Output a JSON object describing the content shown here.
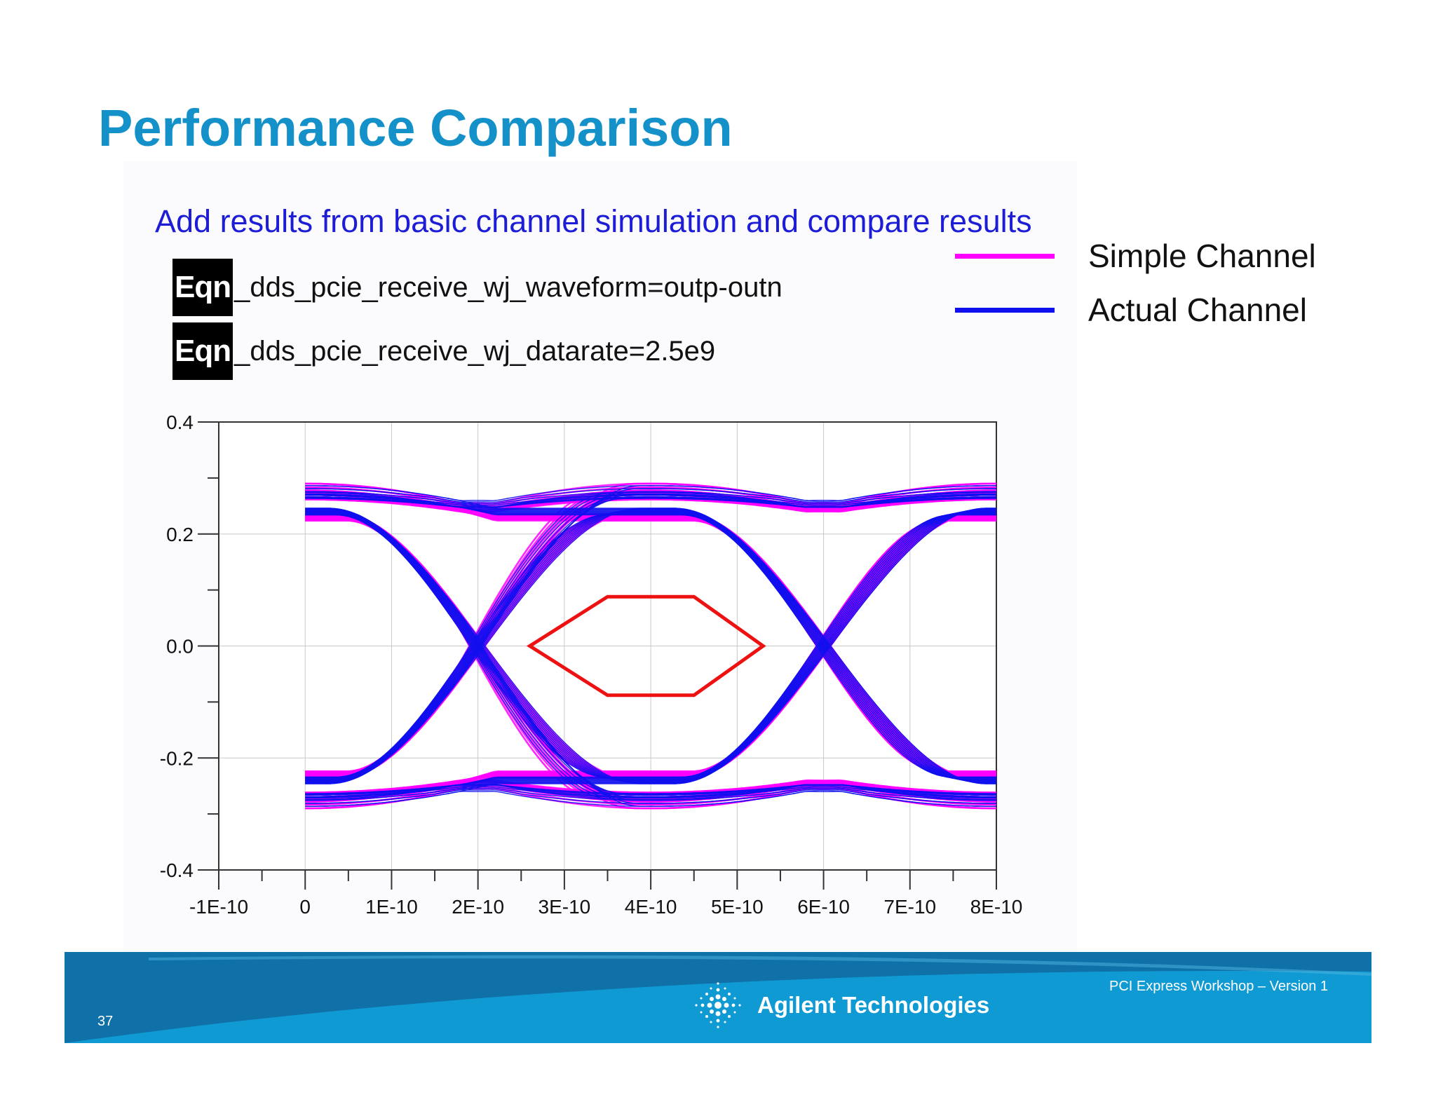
{
  "slide": {
    "title": "Performance Comparison",
    "subtitle": "Add results from basic channel simulation and compare results",
    "equations": [
      {
        "badge": "Eqn",
        "text": "_dds_pcie_receive_wj_waveform=outp-outn"
      },
      {
        "badge": "Eqn",
        "text": "_dds_pcie_receive_wj_datarate=2.5e9"
      }
    ],
    "legend": [
      {
        "label": "Simple Channel",
        "color": "#ff00ff"
      },
      {
        "label": "Actual Channel",
        "color": "#1010ee"
      }
    ],
    "footer": {
      "company": "Agilent Technologies",
      "workshop": "PCI Express Workshop – Version 1",
      "page_number": "37"
    }
  },
  "chart_data": {
    "type": "eye-diagram",
    "xlim": [
      -1e-10,
      8e-10
    ],
    "ylim": [
      -0.4,
      0.4
    ],
    "x_ticks": [
      "-1E-10",
      "0",
      "1E-10",
      "2E-10",
      "3E-10",
      "4E-10",
      "5E-10",
      "6E-10",
      "7E-10",
      "8E-10"
    ],
    "x_tick_values": [
      -1e-10,
      0,
      1e-10,
      2e-10,
      3e-10,
      4e-10,
      5e-10,
      6e-10,
      7e-10,
      8e-10
    ],
    "y_ticks": [
      "0.4",
      "0.2",
      "0.0",
      "-0.2",
      "-0.4"
    ],
    "y_tick_values": [
      0.4,
      0.2,
      0.0,
      -0.2,
      -0.4
    ],
    "grid": true,
    "unit_interval": 4e-10,
    "crossing_times": [
      2e-10,
      6e-10
    ],
    "series": [
      {
        "name": "Simple Channel",
        "color": "#ff00ff",
        "levels": [
          0.23,
          -0.23
        ],
        "overshoot": 0.06,
        "traces": 10
      },
      {
        "name": "Actual Channel",
        "color": "#1010ee",
        "levels": [
          0.24,
          -0.24
        ],
        "overshoot": 0.045,
        "traces": 10
      }
    ],
    "mask": {
      "color": "#ee1111",
      "points": [
        [
          2.6e-10,
          0
        ],
        [
          3.5e-10,
          0.088
        ],
        [
          4.5e-10,
          0.088
        ],
        [
          5.3e-10,
          0
        ],
        [
          4.5e-10,
          -0.088
        ],
        [
          3.5e-10,
          -0.088
        ]
      ]
    }
  }
}
